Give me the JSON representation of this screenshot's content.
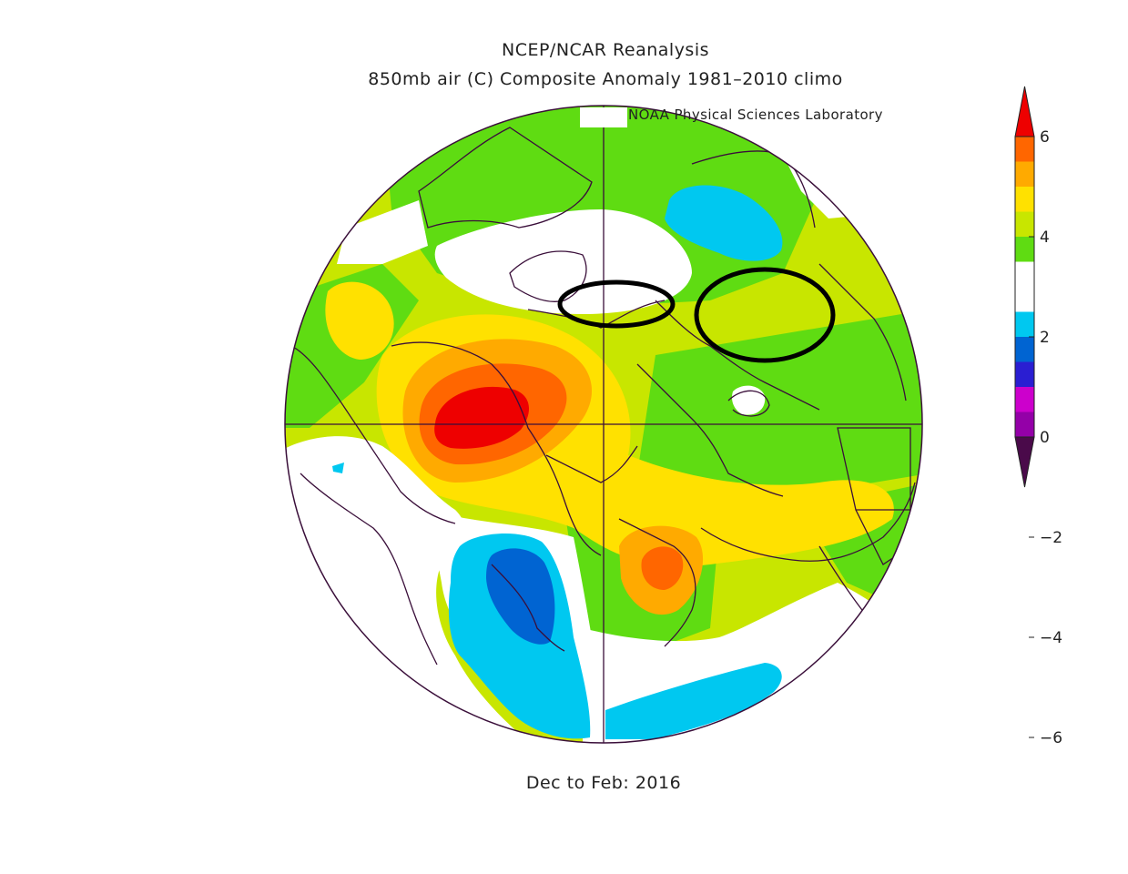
{
  "title": {
    "line1": "NCEP/NCAR Reanalysis",
    "line2": "850mb air (C) Composite Anomaly 1981–2010 climo"
  },
  "credit": "NOAA Physical Sciences Laboratory",
  "period": "Dec to Feb: 2016",
  "colorbar": {
    "ticks": [
      "6",
      "4",
      "2",
      "0",
      "−2",
      "−4",
      "−6"
    ],
    "colors": [
      "#ee0000",
      "#ff6600",
      "#ffaa00",
      "#ffe100",
      "#c8e600",
      "#5fdc12",
      "#ffffff",
      "#ffffff",
      "#00c8f0",
      "#0064d2",
      "#2a1ed2",
      "#cc00cc",
      "#9400a8",
      "#4a0a4a"
    ]
  },
  "annotations": [
    {
      "name": "ellipse-left",
      "desc": "black outline ellipse"
    },
    {
      "name": "ellipse-right",
      "desc": "black outline ellipse"
    }
  ]
}
